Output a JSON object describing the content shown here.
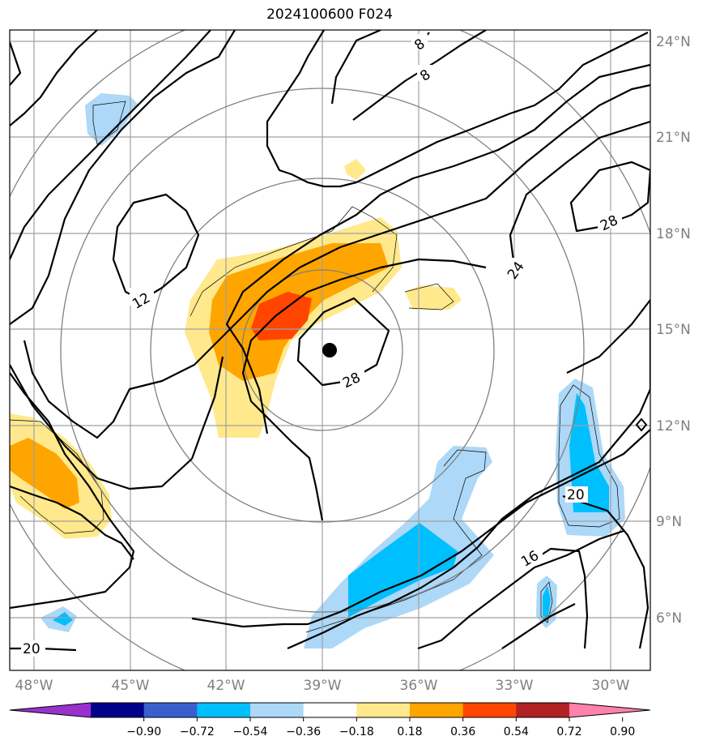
{
  "title": "2024100600 F024",
  "lon_labels": [
    "48°W",
    "45°W",
    "42°W",
    "39°W",
    "36°W",
    "33°W",
    "30°W"
  ],
  "lat_labels": [
    "24°N",
    "21°N",
    "18°N",
    "15°N",
    "12°N",
    "9°N",
    "6°N"
  ],
  "contour_labels": [
    "8",
    "8",
    "12",
    "16",
    "20",
    "20",
    "24",
    "28",
    "28"
  ],
  "colorbar": {
    "colors": [
      "#9932cc",
      "#00008b",
      "#3a5fcd",
      "#00bfff",
      "#add8f7",
      "#ffffff",
      "#ffe98c",
      "#ffa500",
      "#ff4500",
      "#b22222",
      "#ff82ab"
    ],
    "labels": [
      "−0.90",
      "−0.72",
      "−0.54",
      "−0.36",
      "−0.18",
      "0.18",
      "0.36",
      "0.54",
      "0.72",
      "0.90"
    ]
  },
  "storm_center_label": "",
  "colors": {
    "grid": "#a0a0a0",
    "range_rings": "#808080",
    "contours": "#000000"
  }
}
